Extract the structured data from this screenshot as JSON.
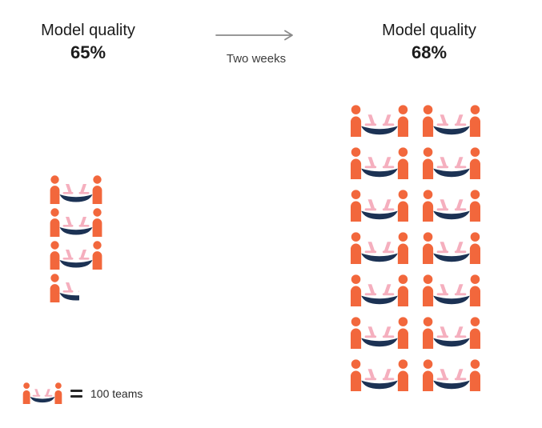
{
  "colors": {
    "person": "#F2673C",
    "table": "#1C3254",
    "laptop": "#F5AFBE",
    "arrow": "#8A8A8A",
    "text": "#1C1C1C"
  },
  "chart_data": {
    "type": "pictogram",
    "unit": {
      "icon": "team-desk",
      "value": 100,
      "label": "100 teams"
    },
    "transition": {
      "label": "Two weeks",
      "direction": "right"
    },
    "groups": [
      {
        "id": "before",
        "title": "Model quality",
        "value_label": "65%",
        "value_pct": 65,
        "icon_count": 3.5,
        "teams": 350,
        "columns": 1
      },
      {
        "id": "after",
        "title": "Model quality",
        "value_label": "68%",
        "value_pct": 68,
        "icon_count": 14,
        "teams": 1400,
        "columns": 2
      }
    ],
    "legend": {
      "label": "100 teams"
    }
  }
}
